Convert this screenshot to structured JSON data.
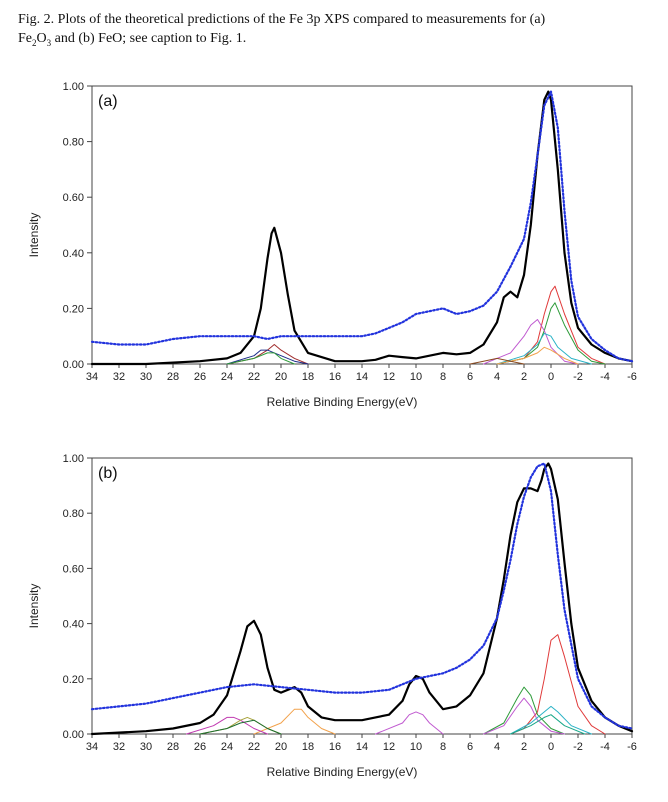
{
  "caption": {
    "line1": "Fig. 2. Plots of the theoretical predictions of the Fe 3p XPS compared to measurements for (a)",
    "line2_pre": "Fe",
    "line2_sub1": "2",
    "line2_mid": "O",
    "line2_sub2": "3",
    "line2_post": " and (b) FeO; see caption to Fig. 1."
  },
  "chart_data": [
    {
      "type": "line",
      "panel_label": "(a)",
      "xlabel": "Relative Binding Energy(eV)",
      "ylabel": "Intensity",
      "xlim": [
        34,
        -6
      ],
      "ylim": [
        0,
        1
      ],
      "x_ticks": [
        "34",
        "32",
        "30",
        "28",
        "26",
        "24",
        "22",
        "20",
        "18",
        "16",
        "14",
        "12",
        "10",
        "8",
        "6",
        "4",
        "2",
        "0",
        "-2",
        "-4",
        "-6"
      ],
      "y_ticks": [
        "0.00",
        "0.20",
        "0.40",
        "0.60",
        "0.80",
        "1.00"
      ],
      "series": [
        {
          "name": "measurement",
          "style": "dotted",
          "color": "#2233dd",
          "x": [
            34,
            32,
            30,
            28,
            26,
            24,
            22,
            21,
            20,
            18,
            16,
            14,
            13,
            12,
            11,
            10,
            9,
            8,
            7,
            6,
            5,
            4,
            3,
            2,
            1.5,
            1,
            0.5,
            0,
            -0.5,
            -1,
            -1.5,
            -2,
            -3,
            -4,
            -5,
            -6
          ],
          "y": [
            0.08,
            0.07,
            0.07,
            0.09,
            0.1,
            0.1,
            0.1,
            0.09,
            0.1,
            0.1,
            0.1,
            0.1,
            0.11,
            0.13,
            0.15,
            0.18,
            0.19,
            0.2,
            0.18,
            0.19,
            0.21,
            0.26,
            0.35,
            0.45,
            0.58,
            0.75,
            0.93,
            0.98,
            0.85,
            0.55,
            0.3,
            0.17,
            0.09,
            0.05,
            0.02,
            0.01
          ]
        },
        {
          "name": "theory total",
          "style": "solid",
          "color": "#000000",
          "x": [
            34,
            30,
            26,
            24,
            23,
            22,
            21.5,
            21,
            20.7,
            20.5,
            20,
            19.5,
            19,
            18,
            16,
            14,
            13,
            12,
            11,
            10,
            9,
            8,
            7,
            6,
            5,
            4,
            3.5,
            3,
            2.5,
            2,
            1.5,
            1,
            0.5,
            0.2,
            0,
            -0.5,
            -1,
            -1.5,
            -2,
            -3,
            -4,
            -5,
            -6
          ],
          "y": [
            0.0,
            0.0,
            0.01,
            0.02,
            0.04,
            0.1,
            0.2,
            0.38,
            0.47,
            0.49,
            0.4,
            0.25,
            0.12,
            0.04,
            0.01,
            0.01,
            0.015,
            0.03,
            0.025,
            0.02,
            0.03,
            0.04,
            0.035,
            0.04,
            0.07,
            0.15,
            0.24,
            0.26,
            0.24,
            0.32,
            0.5,
            0.75,
            0.95,
            0.98,
            0.95,
            0.7,
            0.4,
            0.22,
            0.13,
            0.07,
            0.04,
            0.02,
            0.01
          ]
        },
        {
          "name": "component red",
          "style": "thin",
          "color": "#e03a3a",
          "x": [
            4,
            2,
            1,
            0.5,
            0,
            -0.3,
            -1,
            -2,
            -3,
            -4
          ],
          "y": [
            0.0,
            0.02,
            0.08,
            0.18,
            0.26,
            0.28,
            0.18,
            0.06,
            0.02,
            0.0
          ]
        },
        {
          "name": "component green",
          "style": "thin",
          "color": "#2e9b3a",
          "x": [
            4,
            2,
            1,
            0.5,
            0,
            -0.3,
            -1,
            -2,
            -3,
            -4
          ],
          "y": [
            0.0,
            0.02,
            0.06,
            0.12,
            0.2,
            0.22,
            0.14,
            0.05,
            0.01,
            0.0
          ]
        },
        {
          "name": "component violet",
          "style": "thin",
          "color": "#c05ad0",
          "x": [
            5,
            3,
            2,
            1.5,
            1,
            0.5,
            0,
            -1,
            -2
          ],
          "y": [
            0.0,
            0.04,
            0.1,
            0.14,
            0.16,
            0.12,
            0.06,
            0.01,
            0.0
          ]
        },
        {
          "name": "component cyan",
          "style": "thin",
          "color": "#2ab3c6",
          "x": [
            4,
            2,
            1,
            0.5,
            0,
            -0.5,
            -1.5,
            -3
          ],
          "y": [
            0.0,
            0.03,
            0.07,
            0.11,
            0.1,
            0.06,
            0.02,
            0.0
          ]
        },
        {
          "name": "component orange",
          "style": "thin",
          "color": "#f2a24c",
          "x": [
            4,
            2,
            1,
            0.5,
            0,
            -1,
            -2
          ],
          "y": [
            0.0,
            0.02,
            0.04,
            0.06,
            0.05,
            0.02,
            0.0
          ]
        },
        {
          "name": "component 20eV maroon",
          "style": "thin",
          "color": "#a02d2d",
          "x": [
            24,
            22,
            21,
            20.5,
            20,
            19,
            18
          ],
          "y": [
            0.0,
            0.02,
            0.05,
            0.07,
            0.05,
            0.02,
            0.0
          ]
        },
        {
          "name": "component 20eV navy",
          "style": "thin",
          "color": "#1c2c8a",
          "x": [
            24,
            22,
            21.5,
            21,
            20.5,
            19,
            18
          ],
          "y": [
            0.0,
            0.03,
            0.05,
            0.05,
            0.04,
            0.01,
            0.0
          ]
        },
        {
          "name": "component 20eV green",
          "style": "thin",
          "color": "#2e9b3a",
          "x": [
            24,
            22,
            21,
            20.5,
            20,
            19
          ],
          "y": [
            0.0,
            0.02,
            0.04,
            0.04,
            0.02,
            0.0
          ]
        },
        {
          "name": "component 4eV brown",
          "style": "thin",
          "color": "#8a4a20",
          "x": [
            6,
            5,
            4,
            3,
            2
          ],
          "y": [
            0.0,
            0.01,
            0.02,
            0.01,
            0.0
          ]
        }
      ]
    },
    {
      "type": "line",
      "panel_label": "(b)",
      "xlabel": "Relative Binding Energy(eV)",
      "ylabel": "Intensity",
      "xlim": [
        34,
        -6
      ],
      "ylim": [
        0,
        1
      ],
      "x_ticks": [
        "34",
        "32",
        "30",
        "28",
        "26",
        "24",
        "22",
        "20",
        "18",
        "16",
        "14",
        "12",
        "10",
        "8",
        "6",
        "4",
        "2",
        "0",
        "-2",
        "-4",
        "-6"
      ],
      "y_ticks": [
        "0.00",
        "0.20",
        "0.40",
        "0.60",
        "0.80",
        "1.00"
      ],
      "series": [
        {
          "name": "measurement",
          "style": "dotted",
          "color": "#2233dd",
          "x": [
            34,
            32,
            30,
            28,
            26,
            24,
            22,
            20,
            18,
            16,
            14,
            12,
            10,
            8,
            7,
            6,
            5,
            4,
            3.5,
            3,
            2.5,
            2,
            1.5,
            1,
            0.5,
            0,
            -0.5,
            -1,
            -2,
            -3,
            -4,
            -5,
            -6
          ],
          "y": [
            0.09,
            0.1,
            0.11,
            0.13,
            0.15,
            0.17,
            0.18,
            0.17,
            0.16,
            0.15,
            0.15,
            0.16,
            0.2,
            0.22,
            0.24,
            0.27,
            0.32,
            0.42,
            0.52,
            0.63,
            0.76,
            0.86,
            0.93,
            0.97,
            0.98,
            0.88,
            0.65,
            0.45,
            0.2,
            0.1,
            0.06,
            0.03,
            0.02
          ]
        },
        {
          "name": "theory total",
          "style": "solid",
          "color": "#000000",
          "x": [
            34,
            30,
            28,
            26,
            25,
            24,
            23,
            22.5,
            22,
            21.5,
            21,
            20.5,
            20,
            19.5,
            19,
            18.5,
            18,
            17,
            16,
            14,
            13,
            12,
            11,
            10.5,
            10,
            9.5,
            9,
            8,
            7,
            6,
            5,
            4,
            3.5,
            3,
            2.5,
            2,
            1.5,
            1,
            0.7,
            0.5,
            0.2,
            0,
            -0.5,
            -1,
            -1.5,
            -2,
            -3,
            -4,
            -5,
            -6
          ],
          "y": [
            0.0,
            0.01,
            0.02,
            0.04,
            0.07,
            0.14,
            0.3,
            0.39,
            0.41,
            0.36,
            0.24,
            0.16,
            0.15,
            0.16,
            0.17,
            0.15,
            0.1,
            0.06,
            0.05,
            0.05,
            0.06,
            0.07,
            0.12,
            0.18,
            0.21,
            0.2,
            0.15,
            0.09,
            0.1,
            0.14,
            0.22,
            0.42,
            0.56,
            0.72,
            0.84,
            0.89,
            0.89,
            0.88,
            0.92,
            0.96,
            0.98,
            0.96,
            0.85,
            0.62,
            0.4,
            0.24,
            0.12,
            0.06,
            0.03,
            0.01
          ]
        },
        {
          "name": "component red",
          "style": "thin",
          "color": "#e03a3a",
          "x": [
            3,
            2,
            1,
            0.5,
            0,
            -0.5,
            -1,
            -2,
            -3,
            -4
          ],
          "y": [
            0.0,
            0.02,
            0.08,
            0.2,
            0.34,
            0.36,
            0.28,
            0.1,
            0.03,
            0.0
          ]
        },
        {
          "name": "component green",
          "style": "thin",
          "color": "#2e9b3a",
          "x": [
            5,
            3.5,
            2.5,
            2,
            1.5,
            1,
            0,
            -1
          ],
          "y": [
            0.0,
            0.04,
            0.13,
            0.17,
            0.14,
            0.07,
            0.02,
            0.0
          ]
        },
        {
          "name": "component violet",
          "style": "thin",
          "color": "#c05ad0",
          "x": [
            5,
            3.5,
            2.5,
            2,
            1.5,
            1,
            0,
            -1
          ],
          "y": [
            0.0,
            0.03,
            0.1,
            0.13,
            0.1,
            0.05,
            0.01,
            0.0
          ]
        },
        {
          "name": "component cyan",
          "style": "thin",
          "color": "#2ab3c6",
          "x": [
            3,
            1.5,
            0.5,
            0,
            -0.5,
            -1.5,
            -3
          ],
          "y": [
            0.0,
            0.04,
            0.08,
            0.1,
            0.08,
            0.03,
            0.0
          ]
        },
        {
          "name": "component teal",
          "style": "thin",
          "color": "#1aa88a",
          "x": [
            3,
            1.5,
            0.5,
            0,
            -1,
            -2.5
          ],
          "y": [
            0.0,
            0.03,
            0.06,
            0.07,
            0.03,
            0.0
          ]
        },
        {
          "name": "component orange",
          "style": "thin",
          "color": "#f2a24c",
          "x": [
            22,
            20,
            19,
            18.5,
            18,
            17,
            16
          ],
          "y": [
            0.0,
            0.04,
            0.09,
            0.09,
            0.06,
            0.02,
            0.0
          ]
        },
        {
          "name": "component magenta",
          "style": "thin",
          "color": "#c03ab0",
          "x": [
            27,
            25,
            24,
            23.5,
            23,
            22,
            21
          ],
          "y": [
            0.0,
            0.03,
            0.06,
            0.06,
            0.05,
            0.02,
            0.0
          ]
        },
        {
          "name": "component olive",
          "style": "thin",
          "color": "#a7a23a",
          "x": [
            26,
            24,
            23,
            22.5,
            22,
            21,
            20
          ],
          "y": [
            0.0,
            0.02,
            0.05,
            0.06,
            0.05,
            0.02,
            0.0
          ]
        },
        {
          "name": "component dark green",
          "style": "thin",
          "color": "#1d6e2e",
          "x": [
            26,
            24,
            23,
            22,
            21,
            20
          ],
          "y": [
            0.0,
            0.02,
            0.04,
            0.05,
            0.02,
            0.0
          ]
        },
        {
          "name": "component 10eV violet",
          "style": "thin",
          "color": "#c05ad0",
          "x": [
            13,
            11,
            10.5,
            10,
            9.5,
            9,
            8
          ],
          "y": [
            0.0,
            0.04,
            0.07,
            0.08,
            0.07,
            0.04,
            0.0
          ]
        }
      ]
    }
  ]
}
